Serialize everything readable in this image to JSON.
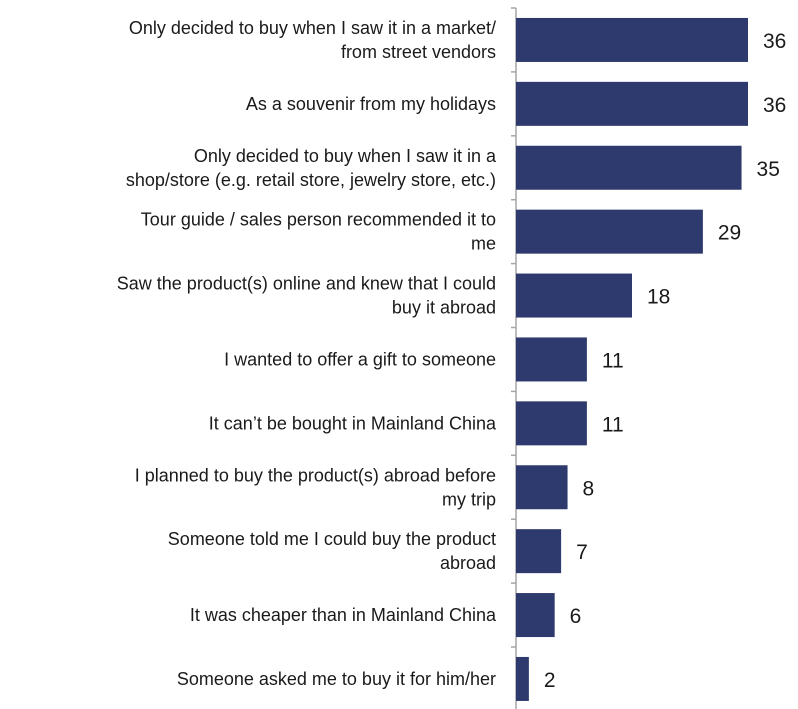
{
  "chart_data": {
    "type": "bar",
    "orientation": "horizontal",
    "bar_color": "#2e3a6e",
    "axis_color": "#a6a6a6",
    "categories": [
      [
        "Only decided to buy when I saw it in a market/",
        "from street vendors"
      ],
      [
        "As a souvenir from my holidays"
      ],
      [
        "Only decided to buy when I saw it in a",
        "shop/store (e.g. retail store, jewelry store, etc.)"
      ],
      [
        "Tour guide / sales person recommended it to",
        "me"
      ],
      [
        "Saw the product(s) online and knew that I could",
        "buy it abroad"
      ],
      [
        "I wanted to offer a gift to someone"
      ],
      [
        "It can’t be bought in Mainland China"
      ],
      [
        "I planned to buy the product(s) abroad before",
        "my trip"
      ],
      [
        "Someone told me I could buy the product",
        "abroad"
      ],
      [
        "It was cheaper than in Mainland China"
      ],
      [
        "Someone asked me to buy it for him/her"
      ]
    ],
    "values": [
      36,
      36,
      35,
      29,
      18,
      11,
      11,
      8,
      7,
      6,
      2
    ],
    "xlim": [
      0,
      36
    ],
    "grid": false,
    "legend": "none"
  }
}
